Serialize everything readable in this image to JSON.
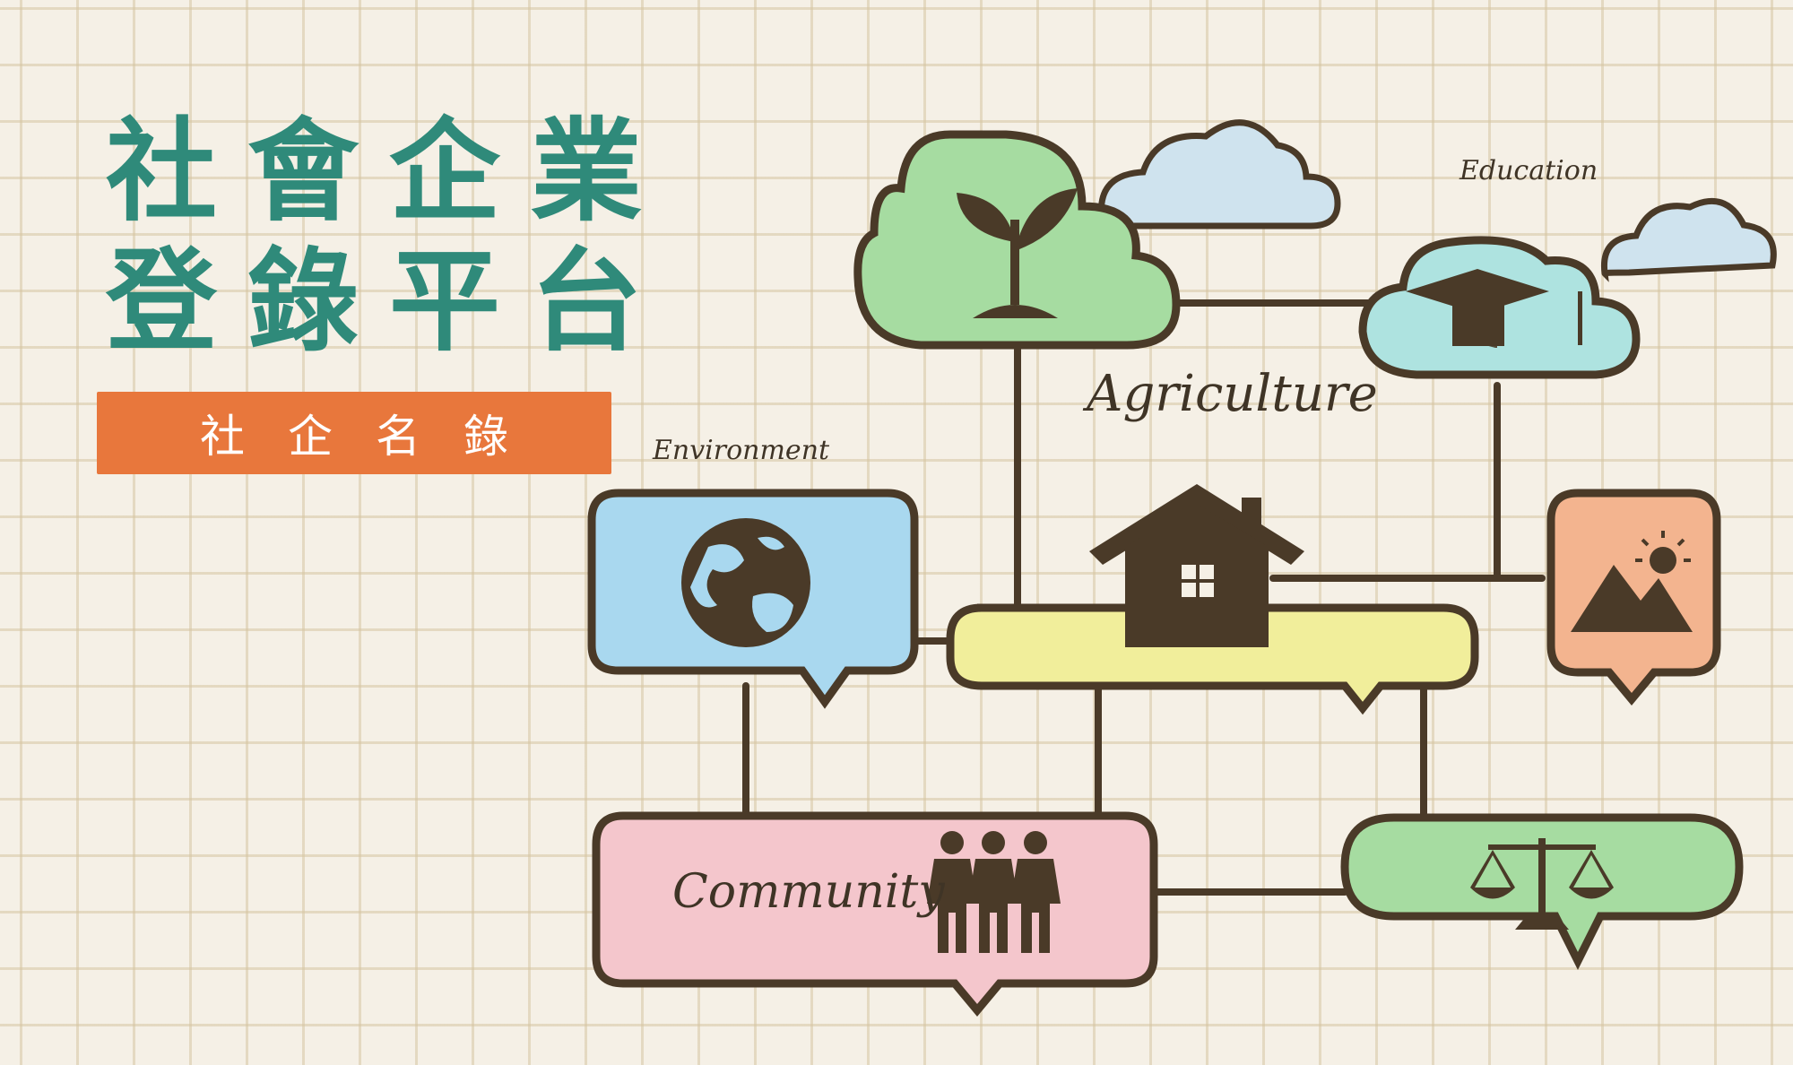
{
  "title": {
    "line1": "社會企業",
    "line2": "登錄平台"
  },
  "badge": {
    "label": "社企名錄"
  },
  "diagram": {
    "agriculture_label": "Agriculture",
    "education_label": "Education",
    "environment_label": "Environment",
    "community_label": "Community",
    "nodes": [
      {
        "name": "agriculture",
        "icon": "plant-sprout-icon",
        "color": "#a6dca1"
      },
      {
        "name": "education",
        "icon": "graduation-cap-icon",
        "color": "#aee3e0"
      },
      {
        "name": "environment",
        "icon": "globe-icon",
        "color": "#a9d8ef"
      },
      {
        "name": "home",
        "icon": "house-icon",
        "color": "#f1ee9b"
      },
      {
        "name": "tourism",
        "icon": "mountain-sun-icon",
        "color": "#f3b48f"
      },
      {
        "name": "community",
        "icon": "people-icon",
        "color": "#f4c6cc"
      },
      {
        "name": "justice",
        "icon": "scales-icon",
        "color": "#a6dca1"
      }
    ],
    "line_color": "#4a3a28",
    "cloud_color": "#cfe3ee"
  },
  "colors": {
    "title": "#2f8a7a",
    "badge": "#e8773c",
    "background": "#f5f0e6"
  }
}
